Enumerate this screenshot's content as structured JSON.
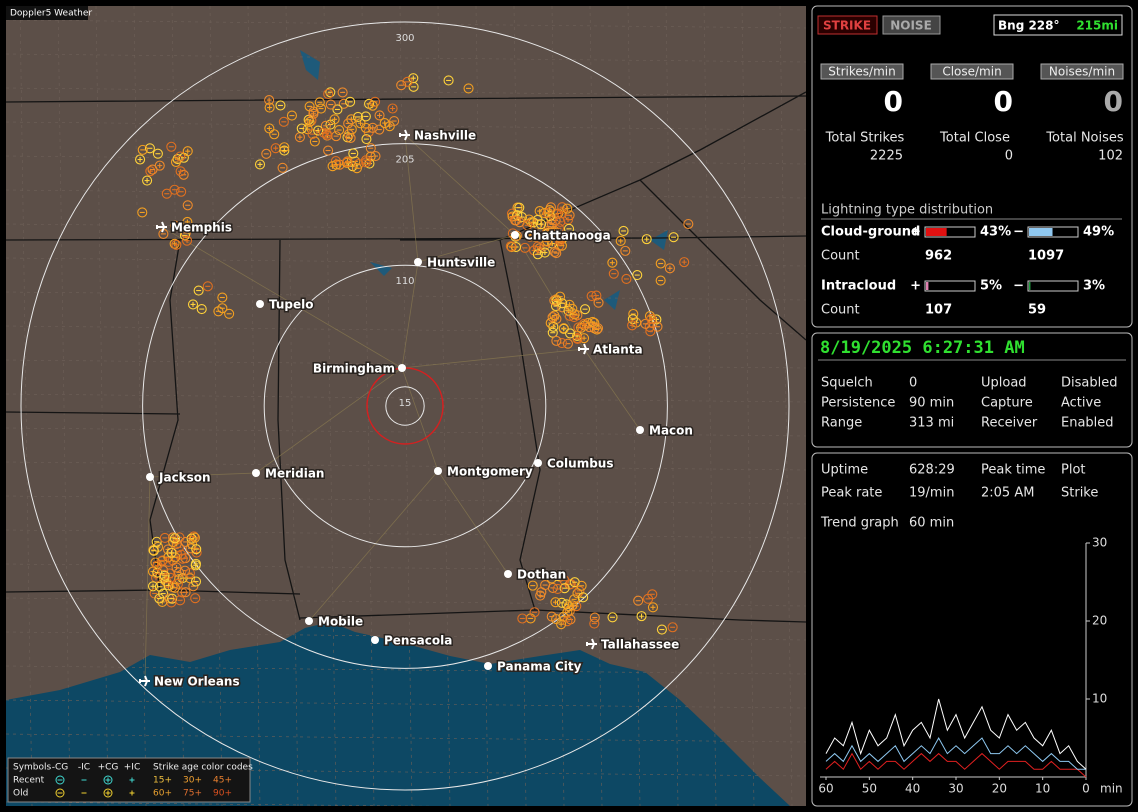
{
  "map": {
    "title": "Doppler5 Weather",
    "rings": [
      300,
      205,
      110,
      15
    ],
    "cities": [
      "Nashville",
      "Memphis",
      "Chattanooga",
      "Huntsville",
      "Tupelo",
      "Birmingham",
      "Atlanta",
      "Macon",
      "Jackson",
      "Meridian",
      "Montgomery",
      "Columbus",
      "Dothan",
      "Mobile",
      "Pensacola",
      "Panama City",
      "Tallahassee",
      "New Orleans"
    ],
    "legend": {
      "symbols": "Symbols",
      "kinds": [
        "-CG",
        "-IC",
        "+CG",
        "+IC"
      ],
      "age_title": "Strike age color codes",
      "rows": [
        {
          "label": "Recent",
          "ages": [
            "15+",
            "30+",
            "45+"
          ]
        },
        {
          "label": "Old",
          "ages": [
            "60+",
            "75+",
            "90+"
          ]
        }
      ]
    }
  },
  "status": {
    "buttons": [
      "STRIKE",
      "NOISE"
    ],
    "bearing": "Bng 228°",
    "distance": "215mi",
    "rates": [
      {
        "label": "Strikes/min",
        "value": 0,
        "total_label": "Total Strikes",
        "total": 2225
      },
      {
        "label": "Close/min",
        "value": 0,
        "total_label": "Total Close",
        "total": 0
      },
      {
        "label": "Noises/min",
        "value": 0,
        "total_label": "Total Noises",
        "total": 102
      }
    ],
    "distribution": {
      "title": "Lightning type distribution",
      "rows": [
        {
          "label": "Cloud-ground",
          "count_label": "Count",
          "plus": {
            "sign": "+",
            "percent": {
              "value": 43,
              "label": "43%"
            },
            "count": 962
          },
          "minus": {
            "sign": "−",
            "percent": {
              "value": 49,
              "label": "49%"
            },
            "count": 1097
          }
        },
        {
          "label": "Intracloud",
          "count_label": "Count",
          "plus": {
            "sign": "+",
            "percent": {
              "value": 5,
              "label": "5%"
            },
            "count": 107
          },
          "minus": {
            "sign": "−",
            "percent": {
              "value": 3,
              "label": "3%"
            },
            "count": 59
          }
        }
      ]
    }
  },
  "clock": "8/19/2025 6:27:31 AM",
  "settings": [
    [
      "Squelch",
      "0",
      "Upload",
      "Disabled"
    ],
    [
      "Persistence",
      "90 min",
      "Capture",
      "Active"
    ],
    [
      "Range",
      "313 mi",
      "Receiver",
      "Enabled"
    ]
  ],
  "stats": [
    [
      "Uptime",
      "628:29",
      "Peak time",
      "Plot"
    ],
    [
      "Peak rate",
      "19/min",
      "2:05 AM",
      "Strike"
    ],
    [
      "Trend graph",
      "60 min"
    ]
  ],
  "trend": {
    "x": [
      60,
      58,
      56,
      54,
      52,
      50,
      48,
      46,
      44,
      42,
      40,
      38,
      36,
      34,
      32,
      30,
      28,
      26,
      24,
      22,
      20,
      18,
      16,
      14,
      12,
      10,
      8,
      6,
      4,
      2,
      0
    ],
    "xlim": [
      60,
      0
    ],
    "xticks": [
      60,
      50,
      40,
      30,
      20,
      10,
      0
    ],
    "x_unit": "min",
    "ylim": [
      0,
      30
    ],
    "yticks": [
      10,
      20,
      30
    ],
    "series": [
      {
        "color": "#ffffff",
        "values": [
          3,
          5,
          4,
          7,
          3,
          6,
          4,
          5,
          8,
          4,
          6,
          7,
          5,
          10,
          6,
          8,
          5,
          7,
          9,
          6,
          5,
          8,
          6,
          7,
          5,
          4,
          6,
          3,
          4,
          2,
          1
        ]
      },
      {
        "color": "#8ec8f0",
        "values": [
          2,
          3,
          2,
          4,
          2,
          3,
          2,
          3,
          4,
          2,
          3,
          4,
          3,
          5,
          3,
          4,
          3,
          4,
          5,
          3,
          3,
          4,
          3,
          4,
          3,
          2,
          3,
          2,
          2,
          1,
          1
        ]
      },
      {
        "color": "#e02020",
        "values": [
          1,
          2,
          1,
          3,
          1,
          2,
          1,
          2,
          2,
          1,
          2,
          3,
          2,
          3,
          2,
          2,
          1,
          2,
          3,
          2,
          1,
          2,
          2,
          2,
          1,
          1,
          2,
          1,
          1,
          1,
          0
        ]
      }
    ]
  }
}
